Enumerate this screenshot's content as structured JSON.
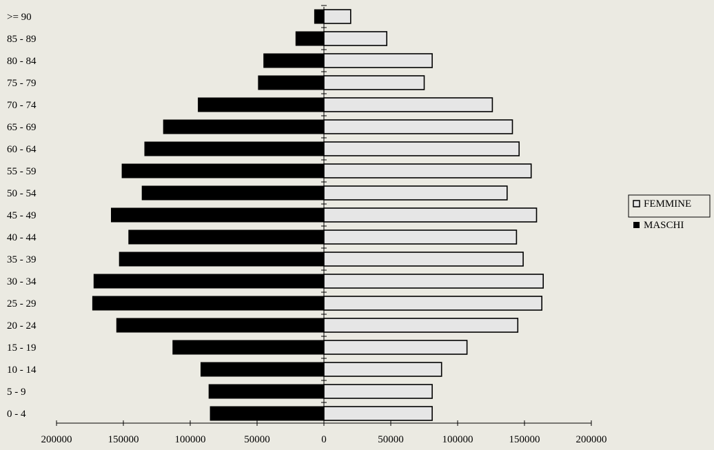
{
  "chart_data": {
    "type": "bar",
    "orientation": "horizontal",
    "subtype": "population-pyramid",
    "categories": [
      "0 - 4",
      "5 - 9",
      "10 - 14",
      "15 - 19",
      "20 - 24",
      "25 - 29",
      "30 - 34",
      "35 - 39",
      "40 - 44",
      "45 - 49",
      "50 - 54",
      "55 - 59",
      "60 - 64",
      "65 - 69",
      "70 - 74",
      "75 - 79",
      "80 - 84",
      "85 - 89",
      ">= 90"
    ],
    "series": [
      {
        "name": "FEMMINE",
        "side": "right",
        "color": "#e6e6e6",
        "values": [
          81000,
          81000,
          88000,
          107000,
          145000,
          163000,
          164000,
          149000,
          144000,
          159000,
          137000,
          155000,
          146000,
          141000,
          126000,
          75000,
          81000,
          47000,
          20000
        ]
      },
      {
        "name": "MASCHI",
        "side": "left",
        "color": "#000000",
        "values": [
          85000,
          86000,
          92000,
          113000,
          155000,
          173000,
          172000,
          153000,
          146000,
          159000,
          136000,
          151000,
          134000,
          120000,
          94000,
          49000,
          45000,
          21000,
          7000
        ]
      }
    ],
    "xlim": [
      -200000,
      200000
    ],
    "x_ticks": [
      "200000",
      "150000",
      "100000",
      "50000",
      "0",
      "50000",
      "100000",
      "150000",
      "200000"
    ],
    "x_tick_values": [
      -200000,
      -150000,
      -100000,
      -50000,
      0,
      50000,
      100000,
      150000,
      200000
    ],
    "legend": {
      "placement": "right",
      "entries": [
        "FEMMINE",
        "MASCHI"
      ]
    },
    "grid": false
  }
}
